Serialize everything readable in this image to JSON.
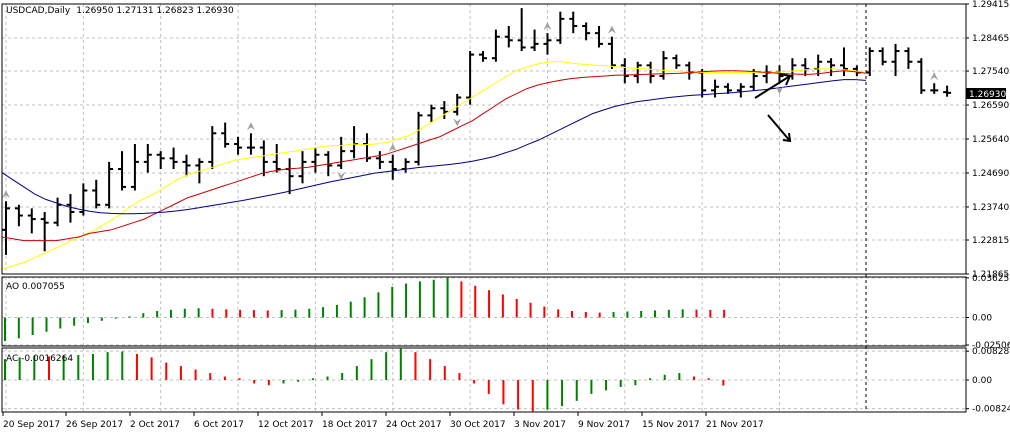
{
  "chart_data": [
    {
      "type": "line",
      "title": "USDCAD,Daily",
      "ohlc_text": "1.26950 1.27131 1.26823 1.26930",
      "price_label": "1.26930",
      "ylim": [
        1.21865,
        1.29415
      ],
      "y_ticks": [
        "1.29415",
        "1.28465",
        "1.27540",
        "1.26590",
        "1.25640",
        "1.24690",
        "1.23740",
        "1.22815",
        "1.21865"
      ],
      "y_tick_values": [
        1.29415,
        1.28465,
        1.2754,
        1.2659,
        1.2564,
        1.2469,
        1.2374,
        1.22815,
        1.21865
      ],
      "x_ticks": [
        "20 Sep 2017",
        "26 Sep 2017",
        "2 Oct 2017",
        "6 Oct 2017",
        "12 Oct 2017",
        "18 Oct 2017",
        "24 Oct 2017",
        "30 Oct 2017",
        "3 Nov 2017",
        "9 Nov 2017",
        "15 Nov 2017",
        "21 Nov 2017"
      ],
      "bars": [
        {
          "o": 1.231,
          "h": 1.239,
          "l": 1.224,
          "c": 1.237
        },
        {
          "o": 1.237,
          "h": 1.238,
          "l": 1.232,
          "c": 1.235
        },
        {
          "o": 1.235,
          "h": 1.237,
          "l": 1.23,
          "c": 1.234
        },
        {
          "o": 1.234,
          "h": 1.236,
          "l": 1.225,
          "c": 1.233
        },
        {
          "o": 1.233,
          "h": 1.24,
          "l": 1.232,
          "c": 1.238
        },
        {
          "o": 1.238,
          "h": 1.241,
          "l": 1.233,
          "c": 1.236
        },
        {
          "o": 1.236,
          "h": 1.244,
          "l": 1.235,
          "c": 1.242
        },
        {
          "o": 1.242,
          "h": 1.245,
          "l": 1.237,
          "c": 1.238
        },
        {
          "o": 1.238,
          "h": 1.25,
          "l": 1.237,
          "c": 1.248
        },
        {
          "o": 1.248,
          "h": 1.253,
          "l": 1.242,
          "c": 1.243
        },
        {
          "o": 1.243,
          "h": 1.255,
          "l": 1.242,
          "c": 1.25
        },
        {
          "o": 1.25,
          "h": 1.255,
          "l": 1.247,
          "c": 1.252
        },
        {
          "o": 1.252,
          "h": 1.253,
          "l": 1.248,
          "c": 1.251
        },
        {
          "o": 1.251,
          "h": 1.254,
          "l": 1.248,
          "c": 1.25
        },
        {
          "o": 1.25,
          "h": 1.252,
          "l": 1.246,
          "c": 1.249
        },
        {
          "o": 1.249,
          "h": 1.251,
          "l": 1.244,
          "c": 1.25
        },
        {
          "o": 1.25,
          "h": 1.26,
          "l": 1.248,
          "c": 1.258
        },
        {
          "o": 1.258,
          "h": 1.261,
          "l": 1.254,
          "c": 1.255
        },
        {
          "o": 1.255,
          "h": 1.257,
          "l": 1.252,
          "c": 1.254
        },
        {
          "o": 1.254,
          "h": 1.258,
          "l": 1.252,
          "c": 1.254
        },
        {
          "o": 1.254,
          "h": 1.256,
          "l": 1.246,
          "c": 1.25
        },
        {
          "o": 1.25,
          "h": 1.255,
          "l": 1.247,
          "c": 1.248
        },
        {
          "o": 1.248,
          "h": 1.251,
          "l": 1.241,
          "c": 1.246
        },
        {
          "o": 1.246,
          "h": 1.253,
          "l": 1.244,
          "c": 1.25
        },
        {
          "o": 1.25,
          "h": 1.254,
          "l": 1.247,
          "c": 1.252
        },
        {
          "o": 1.252,
          "h": 1.253,
          "l": 1.246,
          "c": 1.249
        },
        {
          "o": 1.249,
          "h": 1.257,
          "l": 1.248,
          "c": 1.253
        },
        {
          "o": 1.253,
          "h": 1.26,
          "l": 1.251,
          "c": 1.255
        },
        {
          "o": 1.255,
          "h": 1.258,
          "l": 1.25,
          "c": 1.251
        },
        {
          "o": 1.251,
          "h": 1.253,
          "l": 1.248,
          "c": 1.25
        },
        {
          "o": 1.25,
          "h": 1.252,
          "l": 1.245,
          "c": 1.248
        },
        {
          "o": 1.248,
          "h": 1.251,
          "l": 1.247,
          "c": 1.25
        },
        {
          "o": 1.25,
          "h": 1.264,
          "l": 1.249,
          "c": 1.263
        },
        {
          "o": 1.263,
          "h": 1.266,
          "l": 1.261,
          "c": 1.265
        },
        {
          "o": 1.265,
          "h": 1.267,
          "l": 1.262,
          "c": 1.264
        },
        {
          "o": 1.264,
          "h": 1.269,
          "l": 1.263,
          "c": 1.268
        },
        {
          "o": 1.268,
          "h": 1.281,
          "l": 1.266,
          "c": 1.28
        },
        {
          "o": 1.28,
          "h": 1.281,
          "l": 1.278,
          "c": 1.279
        },
        {
          "o": 1.279,
          "h": 1.287,
          "l": 1.278,
          "c": 1.285
        },
        {
          "o": 1.285,
          "h": 1.288,
          "l": 1.282,
          "c": 1.284
        },
        {
          "o": 1.284,
          "h": 1.293,
          "l": 1.281,
          "c": 1.282
        },
        {
          "o": 1.282,
          "h": 1.287,
          "l": 1.281,
          "c": 1.283
        },
        {
          "o": 1.283,
          "h": 1.286,
          "l": 1.28,
          "c": 1.284
        },
        {
          "o": 1.284,
          "h": 1.292,
          "l": 1.283,
          "c": 1.29
        },
        {
          "o": 1.29,
          "h": 1.292,
          "l": 1.286,
          "c": 1.288
        },
        {
          "o": 1.288,
          "h": 1.289,
          "l": 1.284,
          "c": 1.286
        },
        {
          "o": 1.286,
          "h": 1.288,
          "l": 1.282,
          "c": 1.283
        },
        {
          "o": 1.283,
          "h": 1.285,
          "l": 1.276,
          "c": 1.277
        },
        {
          "o": 1.277,
          "h": 1.279,
          "l": 1.272,
          "c": 1.274
        },
        {
          "o": 1.274,
          "h": 1.278,
          "l": 1.272,
          "c": 1.277
        },
        {
          "o": 1.277,
          "h": 1.278,
          "l": 1.272,
          "c": 1.274
        },
        {
          "o": 1.274,
          "h": 1.281,
          "l": 1.273,
          "c": 1.279
        },
        {
          "o": 1.279,
          "h": 1.28,
          "l": 1.276,
          "c": 1.277
        },
        {
          "o": 1.277,
          "h": 1.278,
          "l": 1.273,
          "c": 1.275
        },
        {
          "o": 1.275,
          "h": 1.276,
          "l": 1.268,
          "c": 1.27
        },
        {
          "o": 1.27,
          "h": 1.273,
          "l": 1.268,
          "c": 1.271
        },
        {
          "o": 1.271,
          "h": 1.272,
          "l": 1.269,
          "c": 1.27
        },
        {
          "o": 1.27,
          "h": 1.272,
          "l": 1.268,
          "c": 1.271
        },
        {
          "o": 1.271,
          "h": 1.276,
          "l": 1.27,
          "c": 1.274
        },
        {
          "o": 1.274,
          "h": 1.277,
          "l": 1.272,
          "c": 1.275
        },
        {
          "o": 1.275,
          "h": 1.277,
          "l": 1.272,
          "c": 1.274
        },
        {
          "o": 1.274,
          "h": 1.279,
          "l": 1.273,
          "c": 1.277
        },
        {
          "o": 1.277,
          "h": 1.279,
          "l": 1.274,
          "c": 1.276
        },
        {
          "o": 1.276,
          "h": 1.28,
          "l": 1.274,
          "c": 1.278
        },
        {
          "o": 1.278,
          "h": 1.279,
          "l": 1.274,
          "c": 1.277
        },
        {
          "o": 1.277,
          "h": 1.282,
          "l": 1.274,
          "c": 1.276
        },
        {
          "o": 1.276,
          "h": 1.277,
          "l": 1.274,
          "c": 1.275
        },
        {
          "o": 1.275,
          "h": 1.282,
          "l": 1.274,
          "c": 1.281
        },
        {
          "o": 1.281,
          "h": 1.282,
          "l": 1.277,
          "c": 1.278
        },
        {
          "o": 1.278,
          "h": 1.283,
          "l": 1.274,
          "c": 1.281
        },
        {
          "o": 1.281,
          "h": 1.282,
          "l": 1.276,
          "c": 1.278
        },
        {
          "o": 1.278,
          "h": 1.279,
          "l": 1.269,
          "c": 1.27
        },
        {
          "o": 1.27,
          "h": 1.272,
          "l": 1.269,
          "c": 1.27
        },
        {
          "o": 1.2695,
          "h": 1.27131,
          "l": 1.26823,
          "c": 1.2693
        }
      ],
      "ma_yellow": [
        1.22,
        1.221,
        1.222,
        1.2235,
        1.225,
        1.2265,
        1.228,
        1.2295,
        1.231,
        1.233,
        1.235,
        1.2375,
        1.2395,
        1.241,
        1.243,
        1.245,
        1.2465,
        1.2475,
        1.2485,
        1.2495,
        1.2505,
        1.251,
        1.2515,
        1.252,
        1.2525,
        1.253,
        1.2535,
        1.254,
        1.2545,
        1.2545,
        1.255,
        1.2548,
        1.255,
        1.2555,
        1.2565,
        1.2575,
        1.2595,
        1.2615,
        1.2635,
        1.2655,
        1.2675,
        1.2695,
        1.2715,
        1.2735,
        1.2755,
        1.2765,
        1.2775,
        1.278,
        1.278,
        1.2775,
        1.2772,
        1.277,
        1.2768,
        1.2765,
        1.2762,
        1.276,
        1.2758,
        1.2755,
        1.2753,
        1.275,
        1.275,
        1.275,
        1.275,
        1.275,
        1.275,
        1.275,
        1.275,
        1.2752,
        1.2755,
        1.2758,
        1.276,
        1.276,
        1.2758,
        1.2755,
        1.275
      ],
      "ma_red": [
        1.229,
        1.2285,
        1.228,
        1.228,
        1.228,
        1.228,
        1.2285,
        1.229,
        1.23,
        1.2305,
        1.231,
        1.232,
        1.233,
        1.234,
        1.2355,
        1.237,
        1.2385,
        1.24,
        1.241,
        1.242,
        1.243,
        1.244,
        1.245,
        1.246,
        1.247,
        1.2475,
        1.248,
        1.2482,
        1.2485,
        1.249,
        1.2495,
        1.25,
        1.2505,
        1.251,
        1.2515,
        1.252,
        1.253,
        1.254,
        1.255,
        1.256,
        1.257,
        1.2585,
        1.26,
        1.2615,
        1.2635,
        1.2655,
        1.2675,
        1.269,
        1.2705,
        1.2715,
        1.2722,
        1.2728,
        1.2733,
        1.2736,
        1.2738,
        1.274,
        1.2742,
        1.2743,
        1.2744,
        1.2745,
        1.2746,
        1.2747,
        1.2748,
        1.275,
        1.2752,
        1.2754,
        1.2755,
        1.2755,
        1.2754,
        1.2752,
        1.275,
        1.2748,
        1.2746,
        1.2745,
        1.2745,
        1.2748,
        1.2752,
        1.2755,
        1.2752,
        1.2748
      ],
      "ma_blue": [
        1.247,
        1.245,
        1.243,
        1.241,
        1.2395,
        1.2385,
        1.2375,
        1.2368,
        1.2362,
        1.2358,
        1.2356,
        1.2355,
        1.2355,
        1.2356,
        1.2358,
        1.236,
        1.2363,
        1.2367,
        1.2372,
        1.2377,
        1.2382,
        1.2387,
        1.2392,
        1.2398,
        1.2404,
        1.241,
        1.2416,
        1.2423,
        1.243,
        1.2437,
        1.2444,
        1.245,
        1.2456,
        1.2462,
        1.2468,
        1.2472,
        1.2476,
        1.248,
        1.2484,
        1.2487,
        1.249,
        1.2493,
        1.2497,
        1.2502,
        1.2508,
        1.2515,
        1.2525,
        1.2535,
        1.2548,
        1.256,
        1.2575,
        1.259,
        1.2605,
        1.262,
        1.2635,
        1.2645,
        1.2655,
        1.2662,
        1.2668,
        1.2672,
        1.2676,
        1.268,
        1.2683,
        1.2686,
        1.2688,
        1.269,
        1.2692,
        1.2694,
        1.2697,
        1.27,
        1.2703,
        1.2707,
        1.2711,
        1.2715,
        1.2719,
        1.2723,
        1.2727,
        1.273,
        1.273,
        1.2728
      ],
      "fractal_up_idx": [
        0,
        19,
        30,
        42,
        47,
        72
      ],
      "fractal_down_idx": [
        26,
        35,
        60
      ]
    },
    {
      "type": "bar",
      "title": "AO 0.007055",
      "ylim": [
        -0.026,
        0.037
      ],
      "y_ticks": [
        "0.036255",
        "0.00",
        "-0.025062"
      ],
      "y_tick_values": [
        0.036255,
        0,
        -0.025062
      ],
      "values": [
        -0.0215,
        -0.019,
        -0.016,
        -0.013,
        -0.01,
        -0.0075,
        -0.005,
        -0.003,
        -0.001,
        0.001,
        0.004,
        0.006,
        0.007,
        0.008,
        0.0085,
        0.008,
        0.0075,
        0.007,
        0.0068,
        0.0065,
        0.0068,
        0.0072,
        0.008,
        0.0095,
        0.0115,
        0.0145,
        0.0185,
        0.023,
        0.028,
        0.031,
        0.033,
        0.0345,
        0.0362,
        0.033,
        0.029,
        0.025,
        0.021,
        0.017,
        0.0135,
        0.01,
        0.0075,
        0.006,
        0.005,
        0.0045,
        0.005,
        0.0055,
        0.006,
        0.0065,
        0.007,
        0.0075,
        0.0072,
        0.007,
        0.007
      ],
      "colors": [
        "#008000",
        "#008000",
        "#008000",
        "#008000",
        "#008000",
        "#008000",
        "#008000",
        "#008000",
        "#008000",
        "#008000",
        "#008000",
        "#008000",
        "#008000",
        "#008000",
        "#008000",
        "#ff0000",
        "#ff0000",
        "#ff0000",
        "#ff0000",
        "#ff0000",
        "#008000",
        "#008000",
        "#008000",
        "#008000",
        "#008000",
        "#008000",
        "#008000",
        "#008000",
        "#008000",
        "#008000",
        "#008000",
        "#008000",
        "#008000",
        "#ff0000",
        "#ff0000",
        "#ff0000",
        "#ff0000",
        "#ff0000",
        "#ff0000",
        "#ff0000",
        "#ff0000",
        "#ff0000",
        "#ff0000",
        "#ff0000",
        "#008000",
        "#008000",
        "#008000",
        "#008000",
        "#008000",
        "#008000",
        "#ff0000",
        "#ff0000",
        "#ff0000"
      ]
    },
    {
      "type": "bar",
      "title": "AC -0.0016264",
      "ylim": [
        -0.0092,
        0.0092
      ],
      "y_ticks": [
        "0.008286",
        "0.00",
        "-0.008246"
      ],
      "y_tick_values": [
        0.008286,
        0,
        -0.008246
      ],
      "values": [
        0.006,
        0.0065,
        0.007,
        0.0068,
        0.007,
        0.0072,
        0.0075,
        0.008,
        0.0082,
        0.0075,
        0.0065,
        0.005,
        0.004,
        0.003,
        0.002,
        0.001,
        0.0005,
        -0.001,
        -0.0015,
        -0.001,
        -0.0005,
        0.0005,
        0.001,
        0.002,
        0.004,
        0.006,
        0.008,
        0.009,
        0.008,
        0.006,
        0.004,
        0.002,
        -0.001,
        -0.004,
        -0.007,
        -0.0085,
        -0.009,
        -0.0085,
        -0.0075,
        -0.006,
        -0.004,
        -0.003,
        -0.002,
        -0.0015,
        0.0005,
        0.0015,
        0.002,
        0.001,
        0.0005,
        -0.0016
      ],
      "colors": [
        "#008000",
        "#008000",
        "#008000",
        "#ff0000",
        "#008000",
        "#008000",
        "#008000",
        "#008000",
        "#008000",
        "#ff0000",
        "#ff0000",
        "#ff0000",
        "#ff0000",
        "#ff0000",
        "#ff0000",
        "#ff0000",
        "#ff0000",
        "#ff0000",
        "#ff0000",
        "#008000",
        "#008000",
        "#008000",
        "#008000",
        "#008000",
        "#008000",
        "#008000",
        "#008000",
        "#008000",
        "#ff0000",
        "#ff0000",
        "#ff0000",
        "#ff0000",
        "#ff0000",
        "#ff0000",
        "#ff0000",
        "#ff0000",
        "#ff0000",
        "#008000",
        "#008000",
        "#008000",
        "#008000",
        "#008000",
        "#008000",
        "#008000",
        "#008000",
        "#008000",
        "#008000",
        "#ff0000",
        "#ff0000",
        "#ff0000"
      ]
    }
  ],
  "colors": {
    "grid": "#c0c0c0",
    "ma_yellow": "#ffff00",
    "ma_red": "#cc0000",
    "ma_blue": "#00008b",
    "ao_up": "#008000",
    "ao_down": "#ff0000",
    "price_label_bg": "#000000",
    "fractal": "#a0a0a0"
  }
}
